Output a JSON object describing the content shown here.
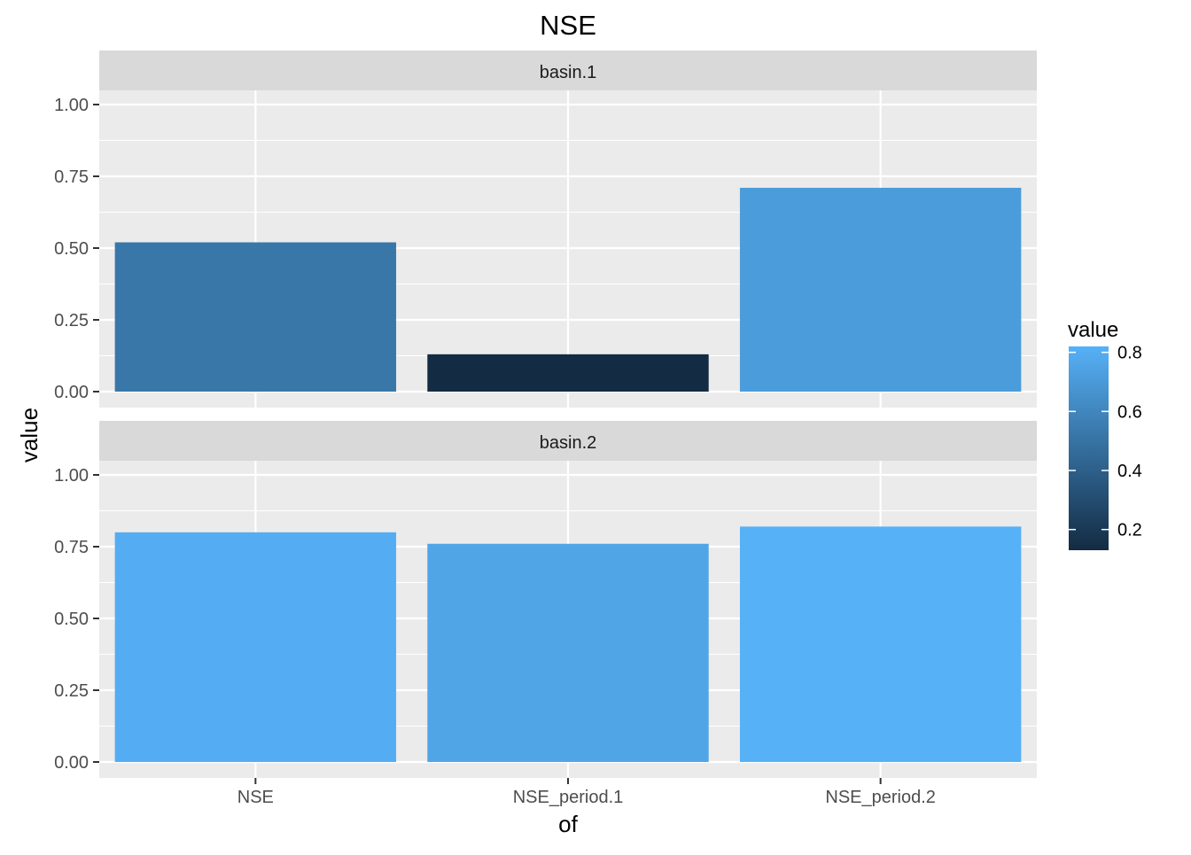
{
  "chart_data": {
    "type": "bar",
    "title": "NSE",
    "xlabel": "of",
    "ylabel": "value",
    "categories": [
      "NSE",
      "NSE_period.1",
      "NSE_period.2"
    ],
    "ylim": [
      0,
      1.05
    ],
    "yticks": [
      0,
      0.25,
      0.5,
      0.75,
      1
    ],
    "ytick_labels": [
      "0.00",
      "0.25",
      "0.50",
      "0.75",
      "1.00"
    ],
    "grid": true,
    "facets": [
      {
        "label": "basin.1",
        "values": [
          0.52,
          0.13,
          0.71
        ]
      },
      {
        "label": "basin.2",
        "values": [
          0.8,
          0.76,
          0.82
        ]
      }
    ],
    "legend": {
      "title": "value",
      "position": "right",
      "type": "colorbar",
      "range": [
        0.13,
        0.82
      ],
      "ticks": [
        0.2,
        0.4,
        0.6,
        0.8
      ],
      "tick_labels": [
        "0.2",
        "0.4",
        "0.6",
        "0.8"
      ],
      "low_color": "#132B43",
      "high_color": "#56B1F7"
    },
    "colors": {
      "panel_bg": "#EBEBEB",
      "strip_bg": "#D9D9D9",
      "grid": "#FFFFFF",
      "text": "#4D4D4D"
    }
  }
}
